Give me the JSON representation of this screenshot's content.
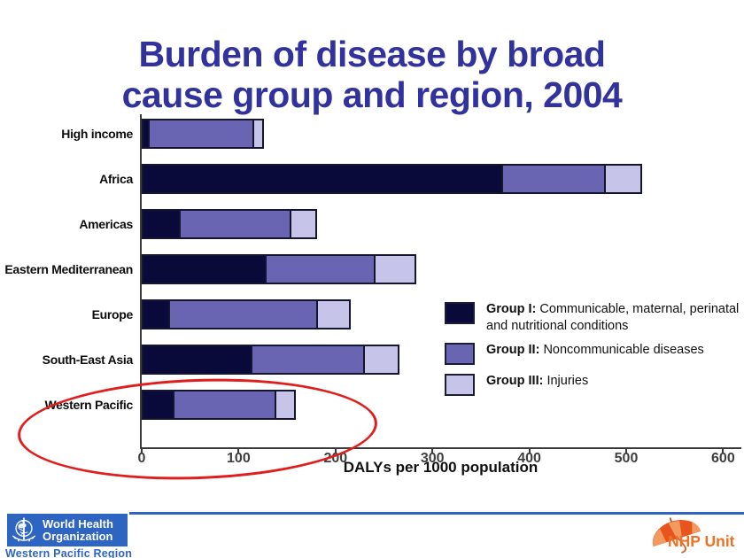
{
  "slide": {
    "title_line1": "Burden of disease by broad",
    "title_line2": "cause group and region, 2004",
    "title_color": "#32329e"
  },
  "chart_data": {
    "type": "bar",
    "orientation": "horizontal",
    "stacked": true,
    "title": "Burden of disease by broad cause group and region, 2004",
    "categories": [
      "High income",
      "Africa",
      "Americas",
      "Eastern Mediterranean",
      "Europe",
      "South-East Asia",
      "Western Pacific"
    ],
    "series": [
      {
        "name": "Group I: Communicable, maternal, perinatal and nutritional conditions",
        "color": "#0a0a3a",
        "values": [
          8,
          373,
          40,
          129,
          29,
          114,
          34
        ]
      },
      {
        "name": "Group II: Noncommunicable diseases",
        "color": "#6a65b3",
        "values": [
          110,
          108,
          116,
          114,
          155,
          118,
          107
        ]
      },
      {
        "name": "Group III: Injuries",
        "color": "#c7c4e9",
        "values": [
          12,
          39,
          29,
          44,
          35,
          38,
          22
        ]
      }
    ],
    "xlabel": "DALYs per 1000 population",
    "ylabel": "",
    "xlim": [
      0,
      620
    ],
    "xticks": [
      0,
      100,
      200,
      300,
      400,
      500,
      600
    ],
    "grid": false,
    "legend_position": "center-right",
    "annotation": {
      "shape": "ellipse",
      "around": "Western Pacific",
      "color": "#e01e1e"
    }
  },
  "legend": {
    "items": [
      {
        "bold": "Group I:",
        "text": " Communicable, maternal, perinatal and nutritional conditions",
        "color": "#0a0a3a"
      },
      {
        "bold": "Group II:",
        "text": " Noncommunicable diseases",
        "color": "#6a65b3"
      },
      {
        "bold": "Group III:",
        "text": " Injuries",
        "color": "#c7c4e9"
      }
    ]
  },
  "footer": {
    "divider_color": "#2f65c2",
    "who": {
      "name_line1": "World Health",
      "name_line2": "Organization",
      "region": "Western Pacific Region",
      "blue": "#2f65c2"
    },
    "nhp": {
      "label": "NHP Unit",
      "orange": "#ee7023",
      "umbrella_color": "#e8541e"
    }
  }
}
